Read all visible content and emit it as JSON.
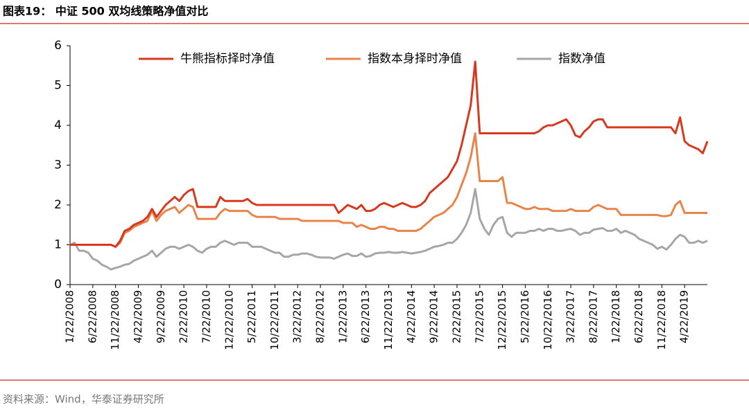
{
  "chart_data": {
    "type": "line",
    "title": "图表19： 中证 500 双均线策略净值对比",
    "source": "资料来源：Wind，华泰证券研究所",
    "categories": [
      "1/22/2008",
      null,
      null,
      null,
      null,
      "6/22/2008",
      null,
      null,
      null,
      null,
      "11/22/2008",
      null,
      null,
      null,
      null,
      "4/22/2009",
      null,
      null,
      null,
      null,
      "9/22/2009",
      null,
      null,
      null,
      null,
      "2/22/2010",
      null,
      null,
      null,
      null,
      "7/22/2010",
      null,
      null,
      null,
      null,
      "12/22/2010",
      null,
      null,
      null,
      null,
      "5/22/2011",
      null,
      null,
      null,
      null,
      "10/22/2011",
      null,
      null,
      null,
      null,
      "3/22/2012",
      null,
      null,
      null,
      null,
      "8/22/2012",
      null,
      null,
      null,
      null,
      "1/22/2013",
      null,
      null,
      null,
      null,
      "6/22/2013",
      null,
      null,
      null,
      null,
      "11/22/2013",
      null,
      null,
      null,
      null,
      "4/22/2014",
      null,
      null,
      null,
      null,
      "9/22/2014",
      null,
      null,
      null,
      null,
      "2/22/2015",
      null,
      null,
      null,
      null,
      "7/22/2015",
      null,
      null,
      null,
      null,
      "12/22/2015",
      null,
      null,
      null,
      null,
      "5/22/2016",
      null,
      null,
      null,
      null,
      "10/22/2016",
      null,
      null,
      null,
      null,
      "3/22/2017",
      null,
      null,
      null,
      null,
      "8/22/2017",
      null,
      null,
      null,
      null,
      "1/22/2018",
      null,
      null,
      null,
      null,
      "6/22/2018",
      null,
      null,
      null,
      null,
      "11/22/2018",
      null,
      null,
      null,
      null,
      "4/22/2019",
      null,
      null,
      null,
      null,
      null
    ],
    "series": [
      {
        "name": "牛熊指标择时净值",
        "color": "#d7391f",
        "values": [
          1,
          1,
          1,
          1,
          1,
          1,
          1,
          1,
          1,
          1,
          0.95,
          1.1,
          1.35,
          1.4,
          1.5,
          1.55,
          1.6,
          1.7,
          1.9,
          1.7,
          1.85,
          2.0,
          2.1,
          2.2,
          2.1,
          2.25,
          2.35,
          2.4,
          1.95,
          1.95,
          1.95,
          1.95,
          1.95,
          2.2,
          2.1,
          2.1,
          2.1,
          2.1,
          2.1,
          2.15,
          2.05,
          2.0,
          2.0,
          2.0,
          2.0,
          2.0,
          2.0,
          2.0,
          2,
          2,
          2,
          2,
          2,
          2,
          2,
          2,
          2,
          2,
          2,
          1.8,
          1.9,
          2.0,
          1.95,
          1.9,
          2.0,
          1.85,
          1.85,
          1.9,
          2.0,
          2.05,
          2.0,
          1.95,
          2.0,
          2.05,
          2.0,
          1.95,
          1.95,
          2.0,
          2.1,
          2.3,
          2.4,
          2.5,
          2.6,
          2.7,
          2.9,
          3.1,
          3.5,
          4.0,
          4.5,
          5.6,
          3.8,
          3.8,
          3.8,
          3.8,
          3.8,
          3.8,
          3.8,
          3.8,
          3.8,
          3.8,
          3.8,
          3.8,
          3.8,
          3.85,
          3.95,
          4.0,
          4.0,
          4.05,
          4.1,
          4.15,
          4.0,
          3.75,
          3.7,
          3.85,
          3.95,
          4.1,
          4.15,
          4.15,
          3.95,
          3.95,
          3.95,
          3.95,
          3.95,
          3.95,
          3.95,
          3.95,
          3.95,
          3.95,
          3.95,
          3.95,
          3.95,
          3.95,
          3.95,
          3.8,
          4.2,
          3.6,
          3.5,
          3.45,
          3.4,
          3.3,
          3.6
        ]
      },
      {
        "name": "指数本身择时净值",
        "color": "#e8834a",
        "values": [
          1,
          1,
          1,
          1,
          1,
          1,
          1,
          1,
          1,
          1,
          0.95,
          1.05,
          1.3,
          1.35,
          1.45,
          1.5,
          1.55,
          1.6,
          1.85,
          1.6,
          1.75,
          1.85,
          1.9,
          1.95,
          1.8,
          1.9,
          2.0,
          1.95,
          1.65,
          1.65,
          1.65,
          1.65,
          1.65,
          1.8,
          1.9,
          1.85,
          1.85,
          1.85,
          1.85,
          1.85,
          1.75,
          1.7,
          1.7,
          1.7,
          1.7,
          1.7,
          1.65,
          1.65,
          1.65,
          1.65,
          1.65,
          1.6,
          1.6,
          1.6,
          1.6,
          1.6,
          1.6,
          1.6,
          1.6,
          1.6,
          1.55,
          1.55,
          1.55,
          1.45,
          1.5,
          1.45,
          1.4,
          1.4,
          1.45,
          1.45,
          1.4,
          1.4,
          1.35,
          1.35,
          1.35,
          1.35,
          1.35,
          1.4,
          1.5,
          1.6,
          1.7,
          1.75,
          1.8,
          1.9,
          2.0,
          2.2,
          2.5,
          2.8,
          3.2,
          3.8,
          2.6,
          2.6,
          2.6,
          2.6,
          2.6,
          2.7,
          2.05,
          2.05,
          2.0,
          1.95,
          1.9,
          1.9,
          1.95,
          1.9,
          1.9,
          1.9,
          1.85,
          1.85,
          1.85,
          1.85,
          1.9,
          1.85,
          1.85,
          1.85,
          1.85,
          1.95,
          2.0,
          1.95,
          1.9,
          1.9,
          1.9,
          1.75,
          1.75,
          1.75,
          1.75,
          1.75,
          1.75,
          1.75,
          1.75,
          1.75,
          1.72,
          1.72,
          1.75,
          2.0,
          2.1,
          1.8,
          1.8,
          1.8,
          1.8,
          1.8,
          1.8
        ]
      },
      {
        "name": "指数净值",
        "color": "#a6a6a6",
        "values": [
          1.0,
          1.05,
          0.85,
          0.85,
          0.8,
          0.65,
          0.6,
          0.5,
          0.45,
          0.38,
          0.42,
          0.45,
          0.5,
          0.52,
          0.6,
          0.65,
          0.7,
          0.75,
          0.85,
          0.7,
          0.8,
          0.9,
          0.95,
          0.95,
          0.9,
          0.95,
          1.0,
          0.95,
          0.85,
          0.8,
          0.9,
          0.95,
          0.95,
          1.05,
          1.1,
          1.05,
          1.0,
          1.05,
          1.05,
          1.05,
          0.95,
          0.95,
          0.95,
          0.9,
          0.85,
          0.8,
          0.8,
          0.7,
          0.7,
          0.75,
          0.75,
          0.78,
          0.78,
          0.75,
          0.7,
          0.68,
          0.68,
          0.68,
          0.65,
          0.7,
          0.75,
          0.78,
          0.72,
          0.72,
          0.78,
          0.7,
          0.72,
          0.78,
          0.8,
          0.8,
          0.82,
          0.8,
          0.8,
          0.82,
          0.8,
          0.78,
          0.8,
          0.82,
          0.85,
          0.9,
          0.95,
          0.97,
          1.0,
          1.05,
          1.05,
          1.15,
          1.3,
          1.5,
          1.8,
          2.4,
          1.65,
          1.4,
          1.25,
          1.5,
          1.65,
          1.7,
          1.3,
          1.2,
          1.3,
          1.3,
          1.3,
          1.35,
          1.35,
          1.4,
          1.35,
          1.4,
          1.4,
          1.35,
          1.35,
          1.38,
          1.4,
          1.35,
          1.25,
          1.3,
          1.3,
          1.38,
          1.4,
          1.42,
          1.35,
          1.35,
          1.4,
          1.3,
          1.35,
          1.3,
          1.25,
          1.15,
          1.1,
          1.05,
          1.0,
          0.9,
          0.95,
          0.88,
          1.0,
          1.15,
          1.25,
          1.2,
          1.05,
          1.05,
          1.1,
          1.05,
          1.1
        ]
      }
    ],
    "ylim": [
      0,
      6
    ],
    "yticks": [
      0,
      1,
      2,
      3,
      4,
      5,
      6
    ],
    "legend": "top"
  }
}
